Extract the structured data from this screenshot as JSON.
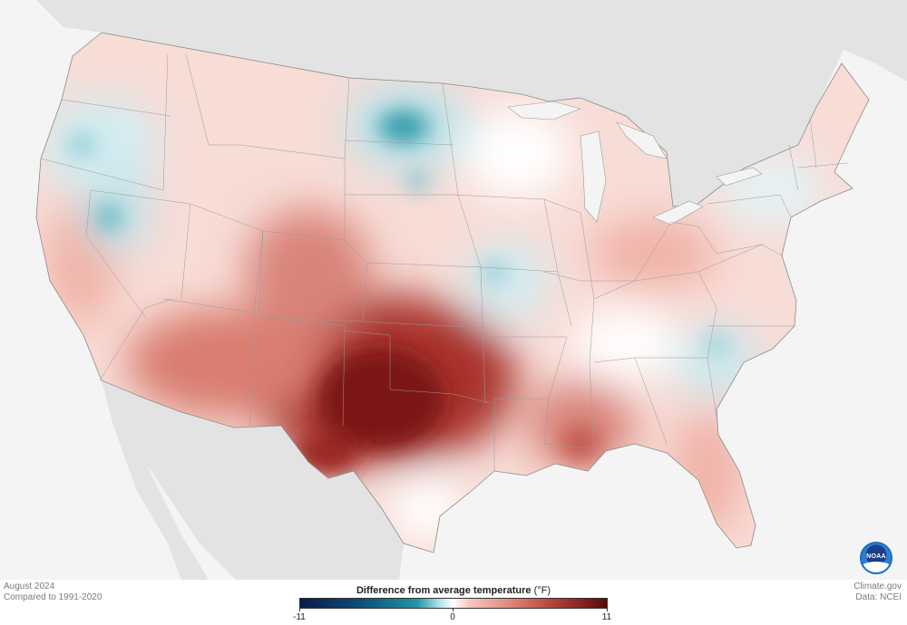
{
  "map": {
    "title": "Difference from average temperature",
    "units": "(°F)",
    "period": "August 2024",
    "baseline": "Compared to 1991-2020",
    "credit_site": "Climate.gov",
    "credit_data": "Data: NCEI",
    "logo": "NOAA",
    "legend": {
      "min": "-11",
      "mid": "0",
      "max": "11",
      "min_value": -11,
      "max_value": 11
    },
    "colors": {
      "land_outside": "#e3e3e3",
      "ocean": "#f4f4f4",
      "neutral": "#ffffff",
      "warm_max": "#5a0a0a",
      "cool_max": "#0b1a4a",
      "border": "#8a8a8a"
    },
    "anomalies": [
      {
        "region": "Texas & southern Plains",
        "value": 8
      },
      {
        "region": "Southwest",
        "value": 5
      },
      {
        "region": "Central Rockies",
        "value": 4
      },
      {
        "region": "Gulf Coast",
        "value": 4
      },
      {
        "region": "Florida",
        "value": 3
      },
      {
        "region": "Ohio Valley",
        "value": 2
      },
      {
        "region": "California",
        "value": 2
      },
      {
        "region": "Northern Plains",
        "value": -3
      },
      {
        "region": "Pacific Northwest",
        "value": -2
      },
      {
        "region": "Great Basin",
        "value": -2
      },
      {
        "region": "Carolinas",
        "value": -2
      },
      {
        "region": "Mid-Mississippi",
        "value": -2
      },
      {
        "region": "New England",
        "value": -1
      }
    ]
  }
}
